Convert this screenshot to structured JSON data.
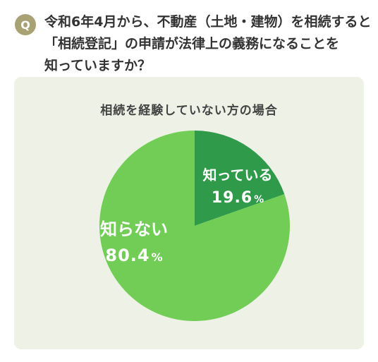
{
  "question": {
    "badge": "Q",
    "lines": [
      "令和6年4月から、不動産（土地・建物）を相続すると",
      "「相続登記」の申請が法律上の義務になることを",
      "知っていますか？"
    ]
  },
  "chart_data": {
    "type": "pie",
    "title": "相続を経験していない方の場合",
    "slices": [
      {
        "label": "知っている",
        "value": 19.6,
        "display": "19.6",
        "unit": "%",
        "color": "#2e9a4a"
      },
      {
        "label": "知らない",
        "value": 80.4,
        "display": "80.4",
        "unit": "%",
        "color": "#72cd57"
      }
    ],
    "start": "12 o'clock",
    "direction": "clockwise"
  },
  "colors": {
    "badge": "#a8a173",
    "panel_background": "#eef2e6",
    "label_text": "#ffffff"
  }
}
